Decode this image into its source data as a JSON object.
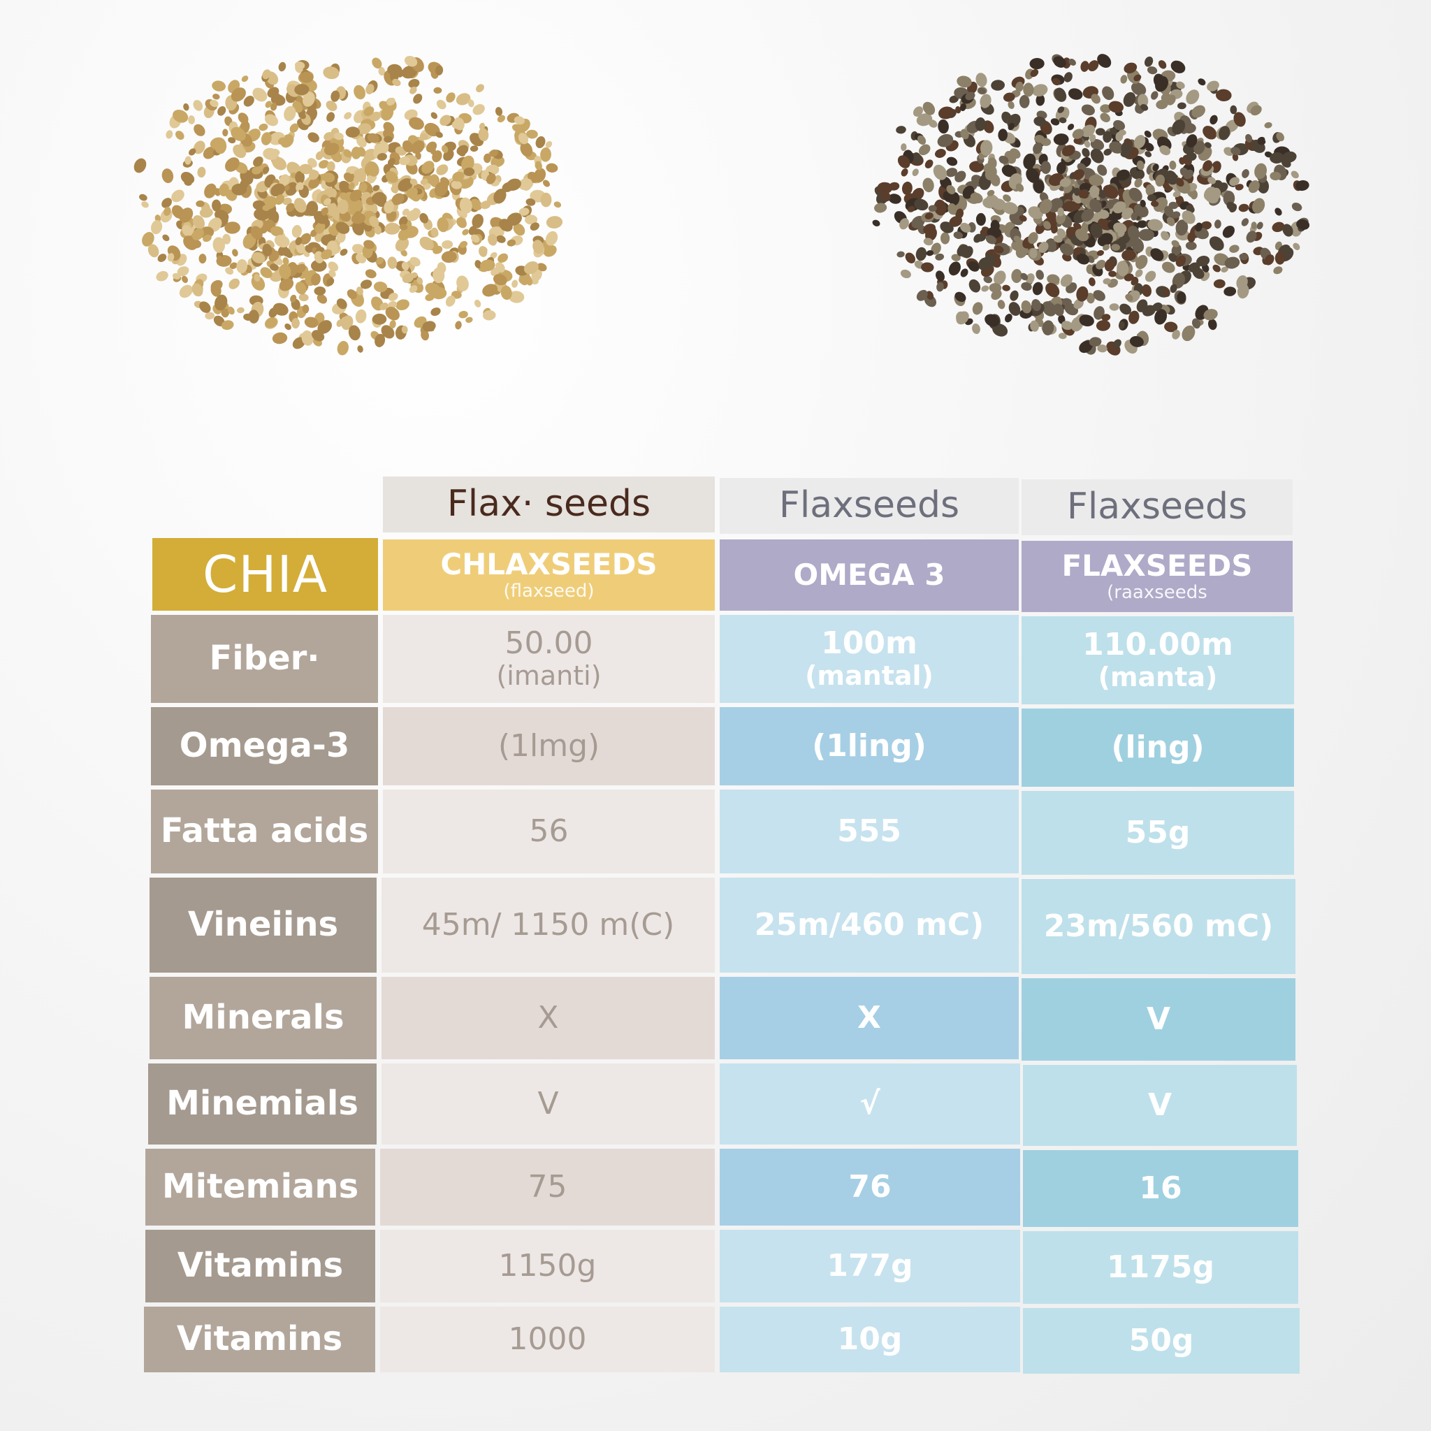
{
  "colors": {
    "brand": "#d3ad37",
    "row_label": "#b2a69b",
    "subheader_yellow": "#efcd78",
    "subheader_purple": "#aeaac8",
    "col1": "#ede8e5",
    "col2": "#c6e2ee",
    "col3": "#bee0ea",
    "flax_seed": "#c7a35f",
    "chia_seed": "#5e5243"
  },
  "images": [
    {
      "name": "flax-seeds-pile-image",
      "description_icon": "golden-seeds"
    },
    {
      "name": "chia-seeds-pile-image",
      "description_icon": "dark-seeds"
    }
  ],
  "table": {
    "top_headers": [
      "Flax· seeds",
      "Flaxseeds",
      "Flaxseeds"
    ],
    "brand": "CHIA",
    "subheaders": [
      {
        "main": "CHLAXSEEDS",
        "sub": "(flaxseed)"
      },
      {
        "main": "OMEGA 3",
        "sub": ""
      },
      {
        "main": "FLAXSEEDS",
        "sub": "(raaxseeds"
      }
    ],
    "rows": [
      {
        "label": "Fiber·",
        "values": [
          {
            "main": "50.00",
            "sub": "(imanti)"
          },
          {
            "main": "100m",
            "sub": "(mantal)"
          },
          {
            "main": "110.00m",
            "sub": "(manta)"
          }
        ]
      },
      {
        "label": "Omega-3",
        "values": [
          {
            "main": "(1lmg)",
            "sub": ""
          },
          {
            "main": "(1ling)",
            "sub": ""
          },
          {
            "main": "(ling)",
            "sub": ""
          }
        ]
      },
      {
        "label": "Fatta acids",
        "values": [
          {
            "main": "56",
            "sub": ""
          },
          {
            "main": "555",
            "sub": ""
          },
          {
            "main": "55g",
            "sub": ""
          }
        ]
      },
      {
        "label": "Vineiins",
        "values": [
          {
            "main": "45m/ 1150 m(C)",
            "sub": ""
          },
          {
            "main": "25m/460 mC)",
            "sub": ""
          },
          {
            "main": "23m/560 mC)",
            "sub": ""
          }
        ]
      },
      {
        "label": "Minerals",
        "values": [
          {
            "main": "X",
            "sub": ""
          },
          {
            "main": "X",
            "sub": ""
          },
          {
            "main": "V",
            "sub": ""
          }
        ]
      },
      {
        "label": "Minemials",
        "values": [
          {
            "main": "V",
            "sub": ""
          },
          {
            "main": "√",
            "sub": ""
          },
          {
            "main": "V",
            "sub": ""
          }
        ]
      },
      {
        "label": "Mitemians",
        "values": [
          {
            "main": "75",
            "sub": ""
          },
          {
            "main": "76",
            "sub": ""
          },
          {
            "main": "16",
            "sub": ""
          }
        ]
      },
      {
        "label": "Vitamins",
        "values": [
          {
            "main": "1150g",
            "sub": ""
          },
          {
            "main": "177g",
            "sub": ""
          },
          {
            "main": "1175g",
            "sub": ""
          }
        ]
      },
      {
        "label": "Vitamins",
        "values": [
          {
            "main": "1000",
            "sub": ""
          },
          {
            "main": "10g",
            "sub": ""
          },
          {
            "main": "50g",
            "sub": ""
          }
        ]
      }
    ]
  }
}
